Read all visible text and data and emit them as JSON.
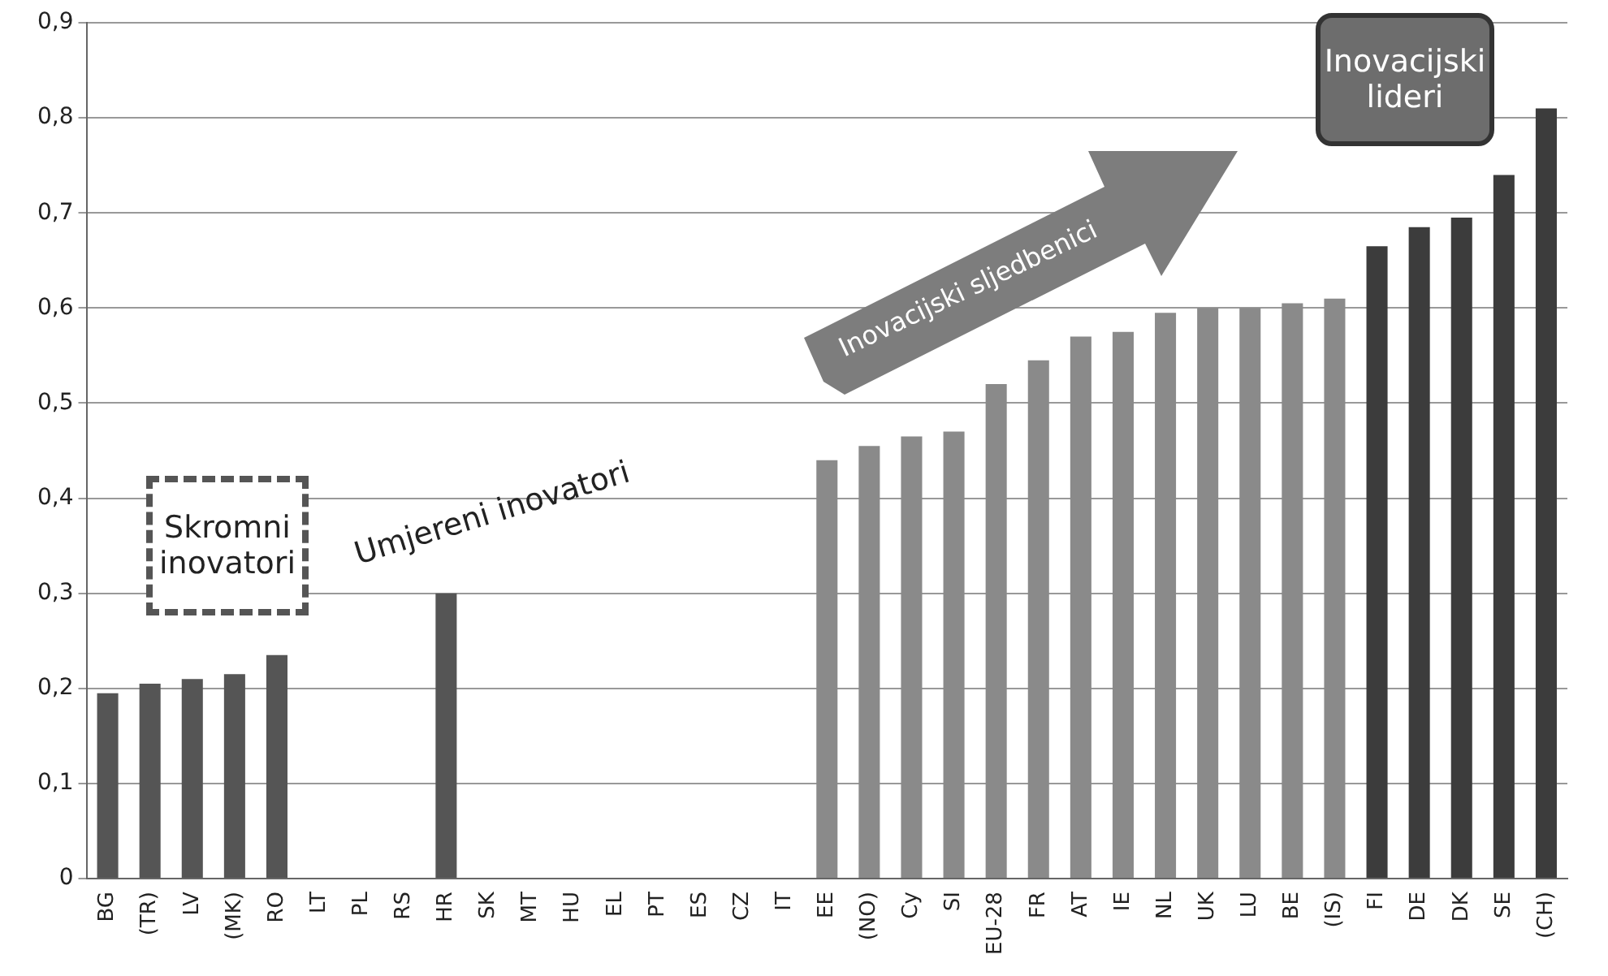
{
  "chart_data": {
    "type": "bar",
    "categories": [
      "BG",
      "(TR)",
      "LV",
      "(MK)",
      "RO",
      "LT",
      "PL",
      "RS",
      "HR",
      "SK",
      "MT",
      "HU",
      "EL",
      "PT",
      "ES",
      "CZ",
      "IT",
      "EE",
      "(NO)",
      "Cy",
      "SI",
      "EU-28",
      "FR",
      "AT",
      "IE",
      "NL",
      "UK",
      "LU",
      "BE",
      "(IS)",
      "FI",
      "DE",
      "DK",
      "SE",
      "(CH)"
    ],
    "values": [
      0.195,
      0.205,
      0.21,
      0.215,
      0.235,
      null,
      null,
      null,
      0.3,
      null,
      null,
      null,
      null,
      null,
      null,
      null,
      null,
      0.44,
      0.455,
      0.465,
      0.47,
      0.52,
      0.545,
      0.57,
      0.575,
      0.595,
      0.6,
      0.6,
      0.605,
      0.61,
      0.665,
      0.685,
      0.695,
      0.74,
      0.81
    ],
    "colors": [
      "#555555",
      "#555555",
      "#555555",
      "#555555",
      "#555555",
      null,
      null,
      null,
      "#555555",
      null,
      null,
      null,
      null,
      null,
      null,
      null,
      null,
      "#8a8a8a",
      "#8a8a8a",
      "#8a8a8a",
      "#8a8a8a",
      "#8a8a8a",
      "#8a8a8a",
      "#8a8a8a",
      "#8a8a8a",
      "#8a8a8a",
      "#8a8a8a",
      "#8a8a8a",
      "#8a8a8a",
      "#8a8a8a",
      "#3c3c3c",
      "#3c3c3c",
      "#3c3c3c",
      "#3c3c3c",
      "#3c3c3c"
    ],
    "ylim": [
      0,
      0.9
    ],
    "yticks": [
      0,
      {
        "value": 0.1,
        "label": "0,1"
      },
      {
        "value": 0.2,
        "label": "0,2"
      },
      {
        "value": 0.3,
        "label": "0,3"
      },
      {
        "value": 0.4,
        "label": "0,4"
      },
      {
        "value": 0.5,
        "label": "0,5"
      },
      {
        "value": 0.6,
        "label": "0,6"
      },
      {
        "value": 0.7,
        "label": "0,7"
      },
      {
        "value": 0.8,
        "label": "0,8"
      },
      {
        "value": 0.9,
        "label": "0,9"
      }
    ],
    "grid": "y",
    "legend": false,
    "annotations": [
      "Skromni inovatori",
      "Umjereni inovatori",
      "Inovacijski sljedbenici",
      "Inovacijski lideri"
    ]
  }
}
